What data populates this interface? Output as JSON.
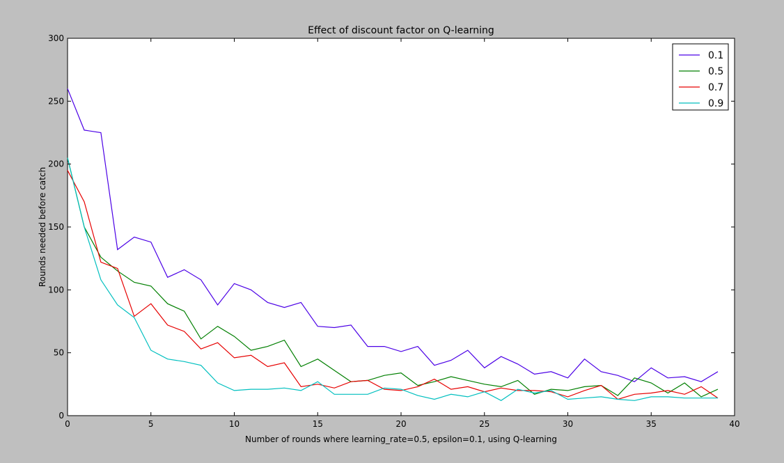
{
  "chart_data": {
    "type": "line",
    "title": "Effect of discount factor on Q-learning",
    "xlabel": "Number of rounds where learning_rate=0.5, epsilon=0.1, using Q-learning",
    "ylabel": "Rounds needed before catch",
    "xlim": [
      0,
      40
    ],
    "ylim": [
      0,
      300
    ],
    "xticks": [
      0,
      5,
      10,
      15,
      20,
      25,
      30,
      35,
      40
    ],
    "yticks": [
      0,
      50,
      100,
      150,
      200,
      250,
      300
    ],
    "legend_position": "top-right",
    "grid": false,
    "x": [
      0,
      1,
      2,
      3,
      4,
      5,
      6,
      7,
      8,
      9,
      10,
      11,
      12,
      13,
      14,
      15,
      16,
      17,
      18,
      19,
      20,
      21,
      22,
      23,
      24,
      25,
      26,
      27,
      28,
      29,
      30,
      31,
      32,
      33,
      34,
      35,
      36,
      37,
      38,
      39
    ],
    "series": [
      {
        "name": "0.1",
        "color": "#4b00e6",
        "values": [
          260,
          227,
          225,
          132,
          142,
          138,
          110,
          116,
          108,
          88,
          105,
          100,
          90,
          86,
          90,
          71,
          70,
          72,
          55,
          55,
          51,
          55,
          40,
          44,
          52,
          38,
          47,
          41,
          33,
          35,
          30,
          45,
          35,
          32,
          27,
          38,
          30,
          31,
          27,
          35
        ]
      },
      {
        "name": "0.5",
        "color": "#007f00",
        "values": [
          205,
          150,
          126,
          115,
          106,
          103,
          89,
          83,
          61,
          71,
          63,
          52,
          55,
          60,
          39,
          45,
          36,
          27,
          28,
          32,
          34,
          24,
          27,
          31,
          28,
          25,
          23,
          28,
          17,
          21,
          20,
          23,
          24,
          16,
          30,
          26,
          18,
          26,
          15,
          21
        ]
      },
      {
        "name": "0.7",
        "color": "#e60000",
        "values": [
          195,
          170,
          122,
          117,
          79,
          89,
          72,
          67,
          53,
          58,
          46,
          48,
          39,
          42,
          23,
          25,
          22,
          27,
          28,
          21,
          20,
          23,
          29,
          21,
          23,
          19,
          22,
          20,
          20,
          19,
          15,
          20,
          24,
          13,
          17,
          18,
          20,
          17,
          23,
          14
        ]
      },
      {
        "name": "0.9",
        "color": "#00bfbf",
        "values": [
          205,
          150,
          108,
          88,
          78,
          52,
          45,
          43,
          40,
          26,
          20,
          21,
          21,
          22,
          20,
          27,
          17,
          17,
          17,
          22,
          21,
          16,
          13,
          17,
          15,
          19,
          12,
          21,
          18,
          20,
          13,
          14,
          15,
          13,
          12,
          15,
          15,
          14,
          14,
          14
        ]
      }
    ]
  }
}
